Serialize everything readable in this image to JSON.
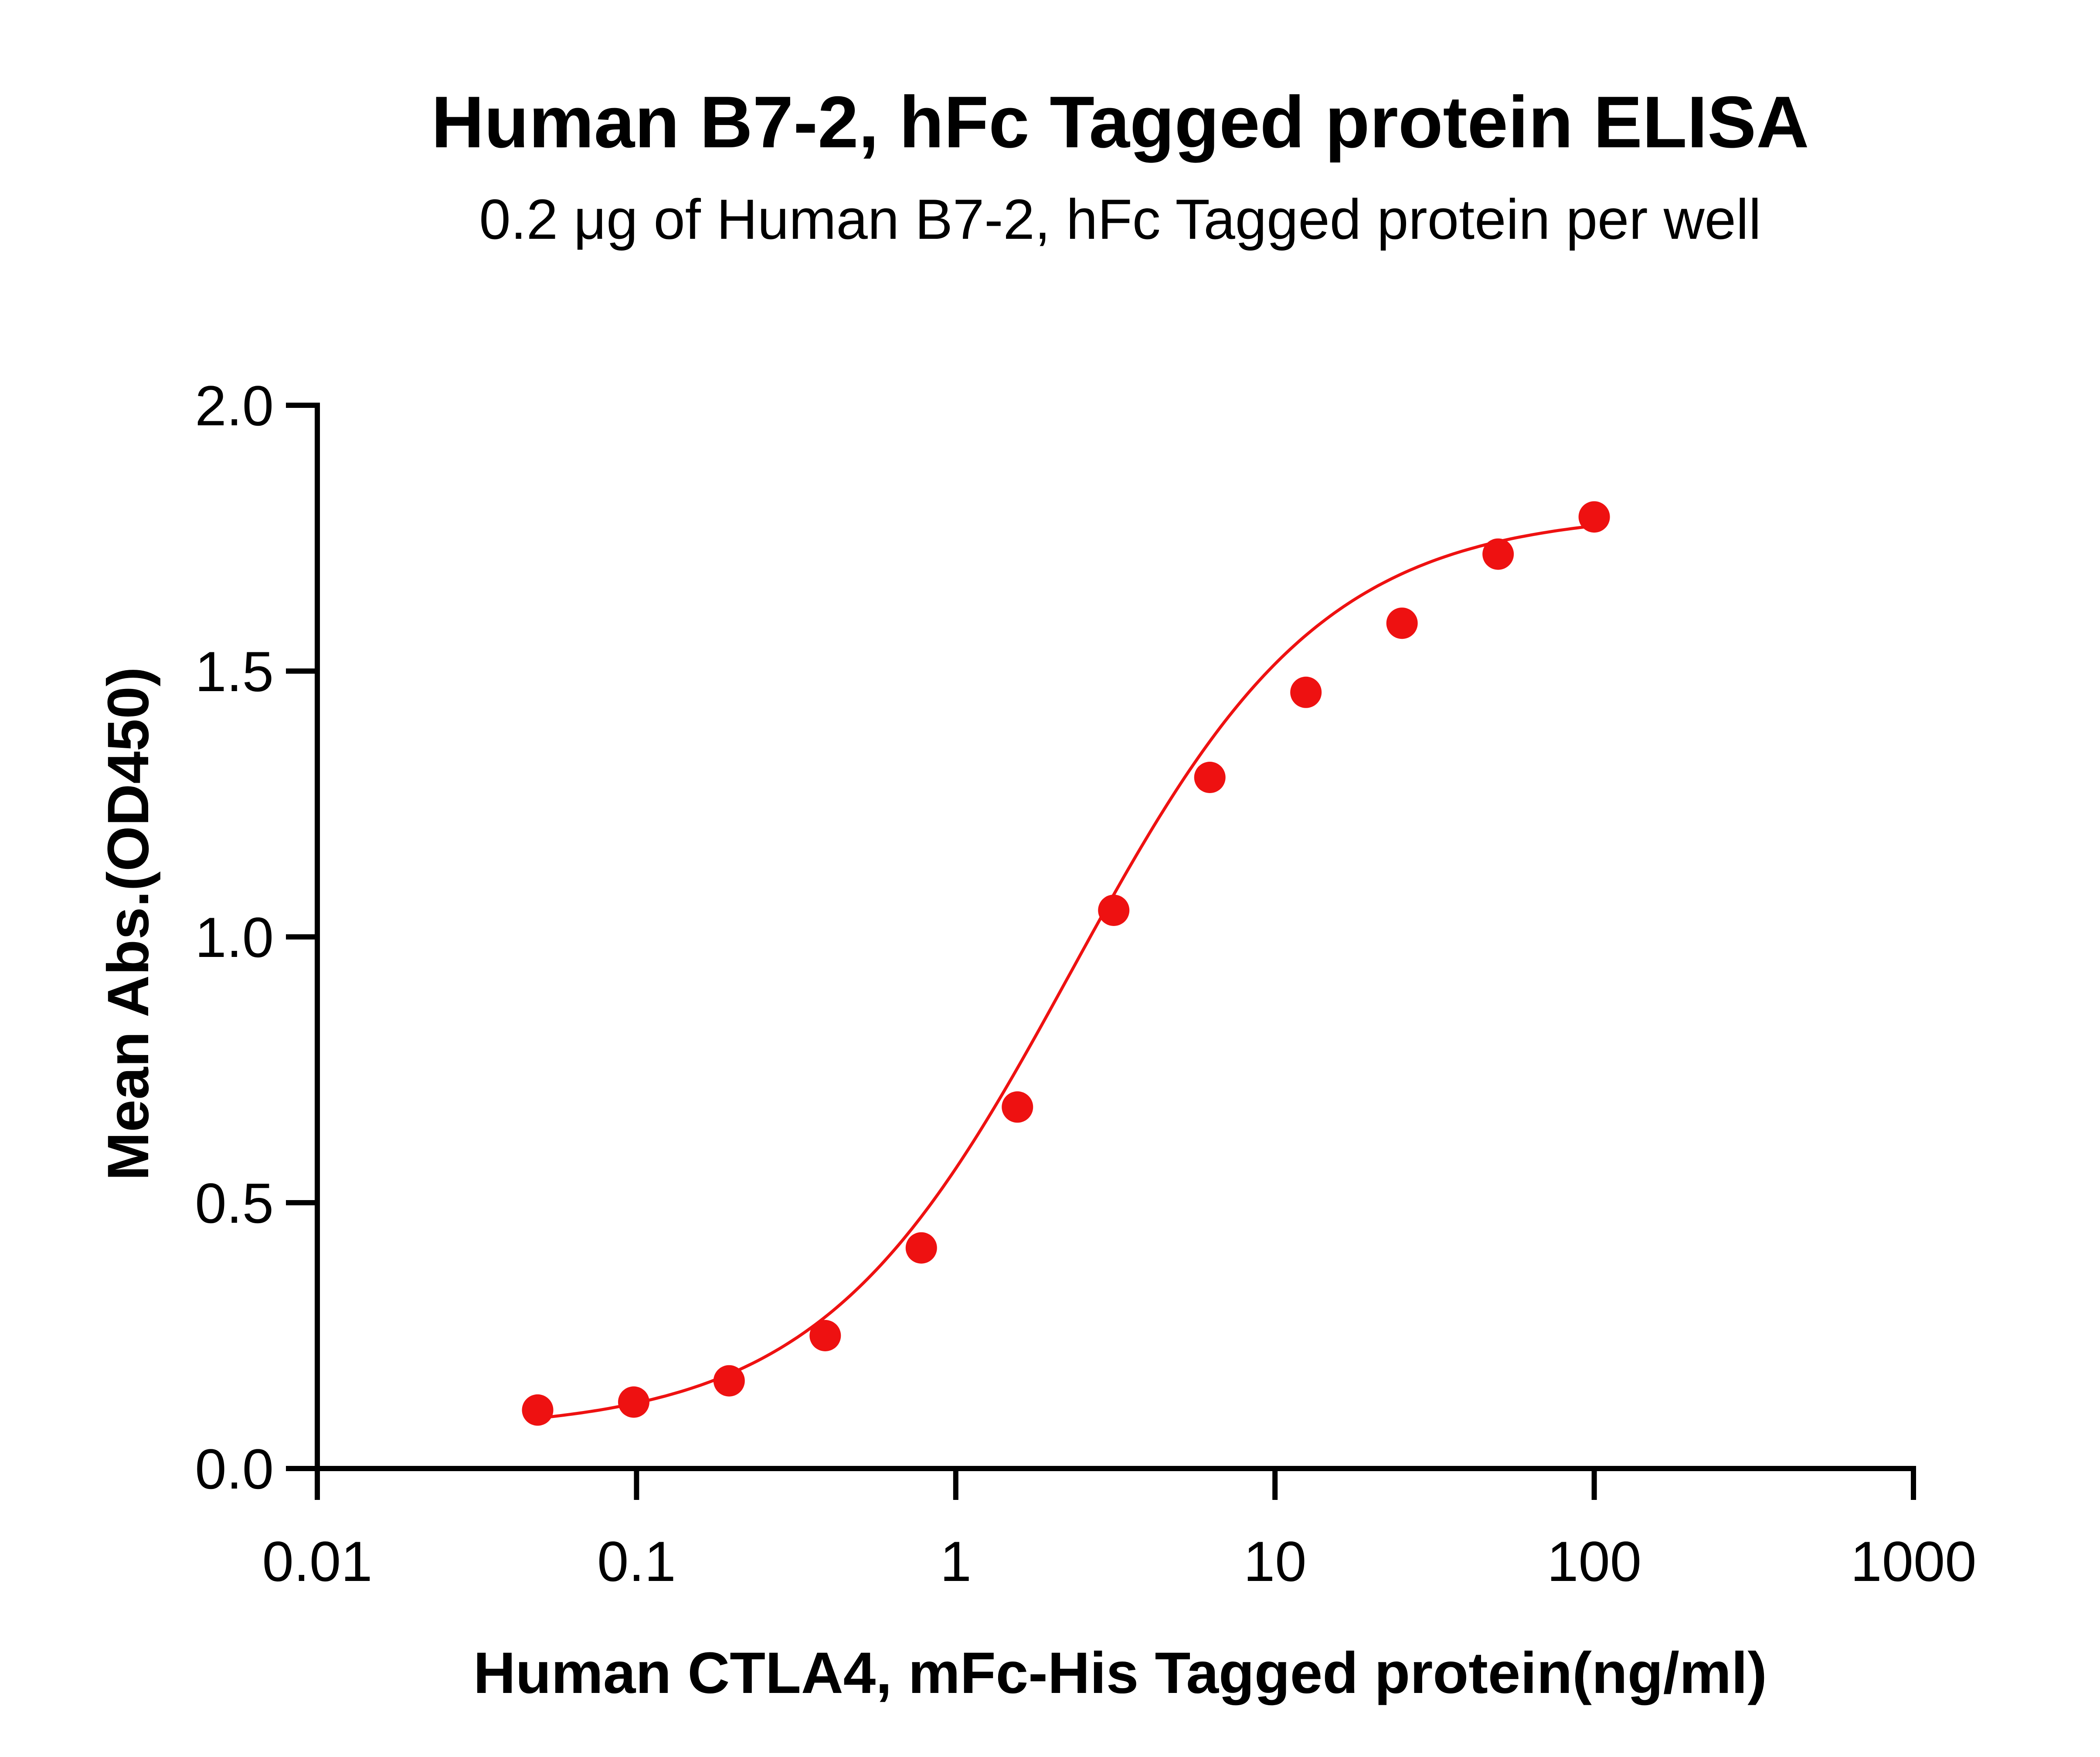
{
  "chart_data": {
    "type": "scatter",
    "title": "Human B7-2, hFc Tagged protein ELISA",
    "subtitle": "0.2 μg of Human B7-2, hFc Tagged protein per well",
    "xlabel": "Human CTLA4, mFc-His Tagged protein(ng/ml)",
    "ylabel": "Mean Abs.(OD450)",
    "x_scale": "log",
    "xlim": [
      0.01,
      1000
    ],
    "ylim": [
      0.0,
      2.0
    ],
    "x_ticks": [
      0.01,
      0.1,
      1,
      10,
      100,
      1000
    ],
    "x_tick_labels": [
      "0.01",
      "0.1",
      "1",
      "10",
      "100",
      "1000"
    ],
    "y_ticks": [
      0.0,
      0.5,
      1.0,
      1.5,
      2.0
    ],
    "y_tick_labels": [
      "0.0",
      "0.5",
      "1.0",
      "1.5",
      "2.0"
    ],
    "grid": false,
    "color": "#ee1111",
    "series": [
      {
        "x": [
          0.049,
          0.098,
          0.195,
          0.39,
          0.78,
          1.56,
          3.125,
          6.25,
          12.5,
          25,
          50,
          100
        ],
        "y": [
          0.11,
          0.125,
          0.165,
          0.25,
          0.415,
          0.68,
          1.05,
          1.3,
          1.46,
          1.59,
          1.72,
          1.79
        ]
      }
    ],
    "fit": {
      "model": "4PL",
      "bottom": 0.07,
      "top": 1.8,
      "ec50": 2.3,
      "hill": 1.1,
      "x_range": [
        0.049,
        100
      ]
    }
  }
}
